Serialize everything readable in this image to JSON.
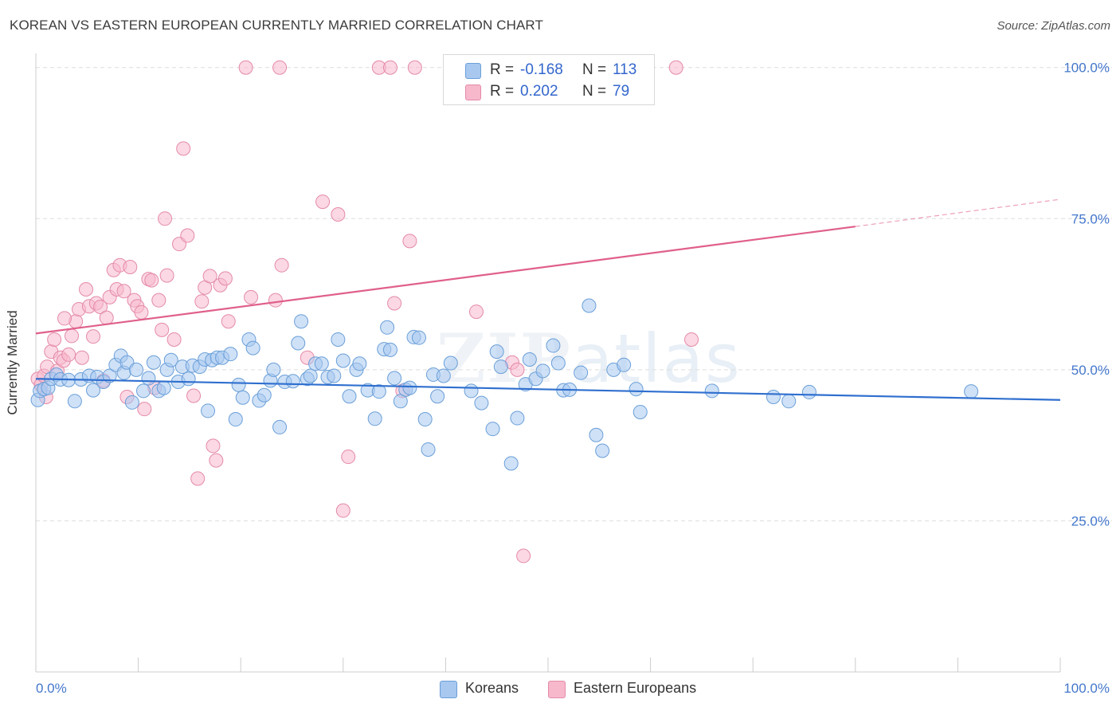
{
  "title": "KOREAN VS EASTERN EUROPEAN CURRENTLY MARRIED CORRELATION CHART",
  "source": "Source: ZipAtlas.com",
  "watermark": {
    "zip": "ZIP",
    "atlas": "atlas"
  },
  "legend_top": {
    "rows": [
      {
        "r_label": "R =",
        "r_value": "-0.168",
        "n_label": "N =",
        "n_value": "113"
      },
      {
        "r_label": "R =",
        "r_value": "0.202",
        "n_label": "N =",
        "n_value": "79"
      }
    ]
  },
  "legend_bottom": {
    "koreans": "Koreans",
    "eastern": "Eastern Europeans"
  },
  "colors": {
    "blue_fill": "#a8c8f0",
    "blue_stroke": "#6a9fd8",
    "blue_line": "#2f6fcf",
    "pink_fill": "#f7b8cc",
    "pink_stroke": "#e48aa8",
    "pink_line": "#e0608a",
    "tick_text": "#4477cc",
    "grid": "#dddddd"
  },
  "chart_data": {
    "type": "scatter",
    "title": "KOREAN VS EASTERN EUROPEAN CURRENTLY MARRIED CORRELATION CHART",
    "xlabel": "",
    "ylabel": "Currently Married",
    "xlim": [
      0,
      100
    ],
    "ylim": [
      0,
      103
    ],
    "x_tick_labels": [
      "0.0%",
      "100.0%"
    ],
    "y_ticks": [
      25,
      50,
      75,
      100
    ],
    "y_tick_labels": [
      "25.0%",
      "50.0%",
      "75.0%",
      "100.0%"
    ],
    "grid": "horizontal dashed",
    "legend": "top-center",
    "series": [
      {
        "name": "Koreans",
        "r": -0.168,
        "n": 113,
        "trend": {
          "x": [
            0,
            100
          ],
          "y": [
            48.5,
            45.0
          ]
        },
        "points": [
          [
            0.2,
            45
          ],
          [
            0.4,
            46.5
          ],
          [
            0.8,
            46.8
          ],
          [
            1.2,
            47
          ],
          [
            1.5,
            48.5
          ],
          [
            2.0,
            49.2
          ],
          [
            2.4,
            48.4
          ],
          [
            3.2,
            48.3
          ],
          [
            3.8,
            44.8
          ],
          [
            4.4,
            48.4
          ],
          [
            5.2,
            49.0
          ],
          [
            5.6,
            46.6
          ],
          [
            6.0,
            48.8
          ],
          [
            6.6,
            48.0
          ],
          [
            7.2,
            49.0
          ],
          [
            7.8,
            50.8
          ],
          [
            8.3,
            52.3
          ],
          [
            8.6,
            49.5
          ],
          [
            8.9,
            51.2
          ],
          [
            9.4,
            44.6
          ],
          [
            9.8,
            50.0
          ],
          [
            10.5,
            46.5
          ],
          [
            11.0,
            48.6
          ],
          [
            11.5,
            51.2
          ],
          [
            12.0,
            46.5
          ],
          [
            12.5,
            47.0
          ],
          [
            12.8,
            50.0
          ],
          [
            13.2,
            51.6
          ],
          [
            13.9,
            48.0
          ],
          [
            14.3,
            50.5
          ],
          [
            14.9,
            48.5
          ],
          [
            15.3,
            50.7
          ],
          [
            16.0,
            50.5
          ],
          [
            16.5,
            51.7
          ],
          [
            16.8,
            43.2
          ],
          [
            17.2,
            51.6
          ],
          [
            17.7,
            52.0
          ],
          [
            18.2,
            52.0
          ],
          [
            19.0,
            52.6
          ],
          [
            19.5,
            41.8
          ],
          [
            19.8,
            47.5
          ],
          [
            20.2,
            45.4
          ],
          [
            20.8,
            55.0
          ],
          [
            21.2,
            53.6
          ],
          [
            21.8,
            44.9
          ],
          [
            22.3,
            45.8
          ],
          [
            22.9,
            48.2
          ],
          [
            23.2,
            50.0
          ],
          [
            23.8,
            40.5
          ],
          [
            24.3,
            48.0
          ],
          [
            25.1,
            48.1
          ],
          [
            25.6,
            54.4
          ],
          [
            25.9,
            58.0
          ],
          [
            26.5,
            48.5
          ],
          [
            26.8,
            49.0
          ],
          [
            27.3,
            51.0
          ],
          [
            27.9,
            51.0
          ],
          [
            28.5,
            48.8
          ],
          [
            29.1,
            49.0
          ],
          [
            29.5,
            55.0
          ],
          [
            30.0,
            51.5
          ],
          [
            30.6,
            45.6
          ],
          [
            31.3,
            50.0
          ],
          [
            31.6,
            51.0
          ],
          [
            32.4,
            46.6
          ],
          [
            33.1,
            41.9
          ],
          [
            33.5,
            46.4
          ],
          [
            34.0,
            53.4
          ],
          [
            34.3,
            57.0
          ],
          [
            34.6,
            53.3
          ],
          [
            35.0,
            48.6
          ],
          [
            35.6,
            44.8
          ],
          [
            36.1,
            46.7
          ],
          [
            36.5,
            47.0
          ],
          [
            36.9,
            55.4
          ],
          [
            37.4,
            55.3
          ],
          [
            38.0,
            41.8
          ],
          [
            38.3,
            36.8
          ],
          [
            38.8,
            49.2
          ],
          [
            39.2,
            45.6
          ],
          [
            39.8,
            49.0
          ],
          [
            40.5,
            51.1
          ],
          [
            42.5,
            46.5
          ],
          [
            43.5,
            44.5
          ],
          [
            44.6,
            40.2
          ],
          [
            45.0,
            53.0
          ],
          [
            45.4,
            50.5
          ],
          [
            46.4,
            34.5
          ],
          [
            47.0,
            42.0
          ],
          [
            47.8,
            47.6
          ],
          [
            48.2,
            51.7
          ],
          [
            48.8,
            48.5
          ],
          [
            49.5,
            49.8
          ],
          [
            50.5,
            54.0
          ],
          [
            51.0,
            51.1
          ],
          [
            51.5,
            46.6
          ],
          [
            52.1,
            46.7
          ],
          [
            53.2,
            49.5
          ],
          [
            54.0,
            60.6
          ],
          [
            54.7,
            39.2
          ],
          [
            55.3,
            36.6
          ],
          [
            56.4,
            50.0
          ],
          [
            57.4,
            50.8
          ],
          [
            58.6,
            46.8
          ],
          [
            59.0,
            43.0
          ],
          [
            66.0,
            46.5
          ],
          [
            72.0,
            45.5
          ],
          [
            73.5,
            44.8
          ],
          [
            75.5,
            46.3
          ],
          [
            91.3,
            46.4
          ]
        ]
      },
      {
        "name": "Eastern Europeans",
        "r": 0.202,
        "n": 79,
        "trend": {
          "x": [
            0,
            80
          ],
          "y": [
            56.0,
            73.7
          ],
          "dashed_to": {
            "x": 100,
            "y": 78.2
          }
        },
        "points": [
          [
            0.2,
            48.5
          ],
          [
            0.5,
            47.5
          ],
          [
            0.8,
            49.0
          ],
          [
            1.1,
            50.5
          ],
          [
            1.5,
            53.0
          ],
          [
            1.8,
            55.0
          ],
          [
            2.1,
            49.8
          ],
          [
            2.4,
            52.0
          ],
          [
            2.7,
            51.5
          ],
          [
            3.2,
            52.5
          ],
          [
            3.5,
            55.6
          ],
          [
            3.9,
            58.0
          ],
          [
            4.2,
            60.0
          ],
          [
            4.5,
            52.0
          ],
          [
            4.9,
            63.3
          ],
          [
            5.2,
            60.5
          ],
          [
            5.6,
            55.5
          ],
          [
            5.9,
            61.0
          ],
          [
            6.3,
            60.4
          ],
          [
            6.6,
            48.2
          ],
          [
            6.9,
            58.6
          ],
          [
            7.2,
            62.0
          ],
          [
            7.6,
            66.5
          ],
          [
            7.9,
            63.3
          ],
          [
            8.2,
            67.3
          ],
          [
            8.6,
            63.0
          ],
          [
            8.9,
            45.5
          ],
          [
            9.2,
            67.0
          ],
          [
            9.6,
            61.5
          ],
          [
            9.9,
            60.5
          ],
          [
            10.3,
            59.5
          ],
          [
            10.6,
            43.5
          ],
          [
            11.0,
            65.0
          ],
          [
            11.3,
            64.8
          ],
          [
            11.6,
            47.0
          ],
          [
            12.0,
            61.5
          ],
          [
            12.3,
            56.6
          ],
          [
            12.6,
            75.0
          ],
          [
            12.8,
            65.6
          ],
          [
            13.5,
            55.0
          ],
          [
            14.0,
            70.8
          ],
          [
            14.4,
            86.6
          ],
          [
            14.8,
            72.2
          ],
          [
            15.4,
            45.7
          ],
          [
            15.8,
            32.0
          ],
          [
            16.2,
            61.3
          ],
          [
            16.5,
            63.6
          ],
          [
            17.0,
            65.5
          ],
          [
            17.3,
            37.4
          ],
          [
            17.6,
            35.0
          ],
          [
            18.0,
            64.0
          ],
          [
            18.5,
            65.1
          ],
          [
            18.8,
            58.0
          ],
          [
            20.5,
            100
          ],
          [
            21.0,
            62.0
          ],
          [
            23.4,
            61.5
          ],
          [
            23.8,
            100
          ],
          [
            24.0,
            67.3
          ],
          [
            26.5,
            52.0
          ],
          [
            28.0,
            77.8
          ],
          [
            29.5,
            75.7
          ],
          [
            30.0,
            26.7
          ],
          [
            30.5,
            35.6
          ],
          [
            33.5,
            100
          ],
          [
            34.6,
            100
          ],
          [
            35.0,
            61.0
          ],
          [
            35.8,
            46.5
          ],
          [
            36.5,
            71.3
          ],
          [
            37.0,
            100
          ],
          [
            41.0,
            100
          ],
          [
            42.0,
            100
          ],
          [
            43.0,
            59.6
          ],
          [
            46.5,
            51.2
          ],
          [
            47.0,
            50.0
          ],
          [
            47.6,
            19.2
          ],
          [
            62.5,
            100
          ],
          [
            64.0,
            55.0
          ],
          [
            1.0,
            45.5
          ],
          [
            2.8,
            58.5
          ]
        ]
      }
    ]
  }
}
